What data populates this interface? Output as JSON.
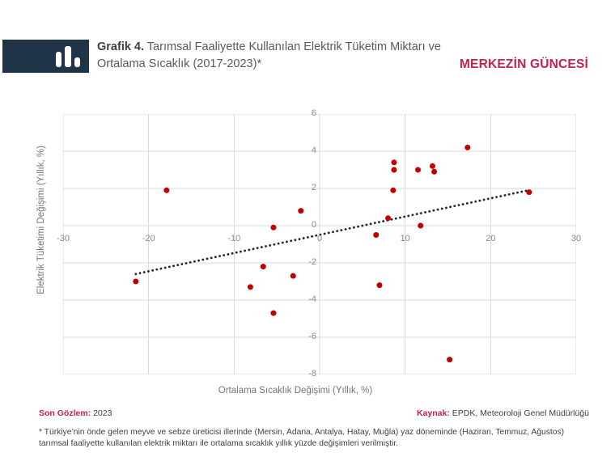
{
  "header": {
    "logo_icon": "bar-chart-icon",
    "title_prefix": "Grafik 4.",
    "title_rest": " Tarımsal Faaliyette Kullanılan Elektrik Tüketim Miktarı ve Ortalama Sıcaklık (2017-2023)*",
    "brand": "MERKEZİN GÜNCESİ"
  },
  "colors": {
    "navy": "#203447",
    "accent_red": "#C4234B",
    "point_red": "#C00000",
    "trend": "#262626",
    "grid": "#D9D9D9",
    "axis_text": "#8A8A8A",
    "axis_title": "#757575",
    "title_dark": "#3F3F3F",
    "title_gray": "#595959"
  },
  "chart_data": {
    "type": "scatter",
    "title": "Grafik 4. Tarımsal Faaliyette Kullanılan Elektrik Tüketim Miktarı ve Ortalama Sıcaklık (2017-2023)*",
    "xlabel": "Ortalama Sıcaklık Değişimi (Yıllık, %)",
    "ylabel": "Elektrik Tüketimi Değişimi (Yıllık, %)",
    "xlim": [
      -30,
      30
    ],
    "ylim": [
      -8,
      6
    ],
    "x_ticks": [
      -30,
      -20,
      -10,
      0,
      10,
      20,
      30
    ],
    "y_ticks": [
      6,
      4,
      2,
      0,
      -2,
      -4,
      -6,
      -8
    ],
    "grid": true,
    "legend": false,
    "marker": {
      "color": "#C00000",
      "size": 7
    },
    "points": [
      [
        -21.5,
        -3.0
      ],
      [
        -17.9,
        1.9
      ],
      [
        -8.1,
        -3.3
      ],
      [
        -6.6,
        -2.2
      ],
      [
        -5.4,
        -4.7
      ],
      [
        -5.4,
        -0.1
      ],
      [
        -3.1,
        -2.7
      ],
      [
        -2.2,
        0.8
      ],
      [
        6.6,
        -0.5
      ],
      [
        7.0,
        -3.2
      ],
      [
        8.0,
        0.4
      ],
      [
        8.6,
        1.9
      ],
      [
        8.7,
        3.4
      ],
      [
        8.7,
        3.0
      ],
      [
        11.5,
        3.0
      ],
      [
        11.8,
        0.0
      ],
      [
        13.2,
        3.2
      ],
      [
        13.4,
        2.9
      ],
      [
        15.2,
        -7.2
      ],
      [
        17.3,
        4.2
      ],
      [
        24.5,
        1.8
      ]
    ],
    "trendline": {
      "style": "dotted",
      "x1": -21.5,
      "y1": -2.6,
      "x2": 24.4,
      "y2": 1.9
    }
  },
  "footer": {
    "last_obs_label": "Son Gözlem:",
    "last_obs_value": "2023",
    "source_label": "Kaynak:",
    "source_value": "EPDK, Meteoroloji Genel Müdürlüğü",
    "footnote": "* Türkiye’nin önde gelen meyve ve sebze üreticisi illerinde (Mersin, Adana, Antalya, Hatay, Muğla) yaz döneminde (Haziran, Temmuz, Ağustos) tarımsal faaliyette kullanılan elektrik miktarı ile ortalama sıcaklık yıllık yüzde değişimleri verilmiştir."
  }
}
